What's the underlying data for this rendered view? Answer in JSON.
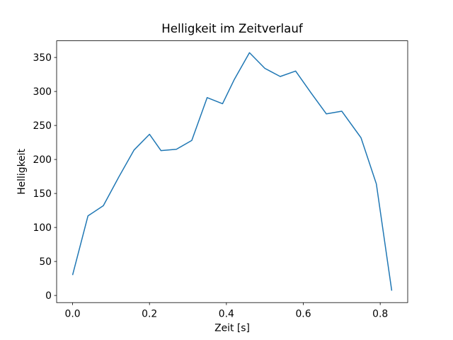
{
  "chart_data": {
    "type": "line",
    "title": "Helligkeit im Zeitverlauf",
    "xlabel": "Zeit [s]",
    "ylabel": "Helligkeit",
    "grid": false,
    "legend": "none",
    "background_color": "#ffffff",
    "axis_color": "#000000",
    "xlim": [
      -0.0415,
      0.8715
    ],
    "ylim": [
      -10.5,
      374.5
    ],
    "xticks": {
      "values": [
        0.0,
        0.2,
        0.4,
        0.6,
        0.8
      ],
      "labels": [
        "0.0",
        "0.2",
        "0.4",
        "0.6",
        "0.8"
      ]
    },
    "yticks": {
      "values": [
        0,
        50,
        100,
        150,
        200,
        250,
        300,
        350
      ],
      "labels": [
        "0",
        "50",
        "100",
        "150",
        "200",
        "250",
        "300",
        "350"
      ]
    },
    "series": [
      {
        "name": "Helligkeit",
        "color": "#1f77b4",
        "x": [
          0.0,
          0.04,
          0.08,
          0.12,
          0.16,
          0.2,
          0.23,
          0.27,
          0.31,
          0.35,
          0.39,
          0.42,
          0.46,
          0.5,
          0.54,
          0.58,
          0.62,
          0.66,
          0.7,
          0.75,
          0.79,
          0.83
        ],
        "y": [
          30,
          117,
          132,
          174,
          214,
          237,
          213,
          215,
          228,
          291,
          282,
          317,
          357,
          334,
          322,
          330,
          298,
          267,
          271,
          232,
          164,
          7
        ]
      }
    ]
  }
}
